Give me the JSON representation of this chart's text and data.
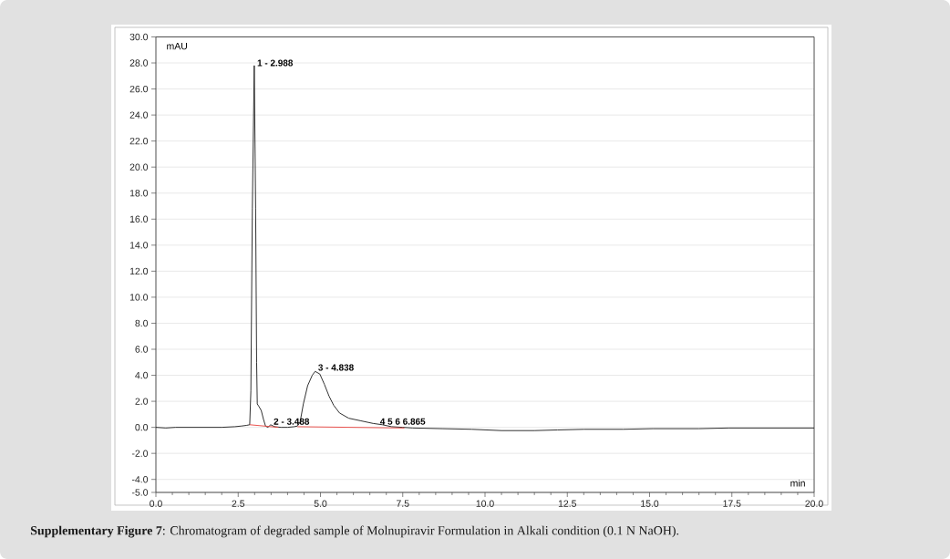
{
  "chart_data": {
    "type": "line",
    "xlabel": "min",
    "ylabel": "mAU",
    "xlim": [
      0,
      20
    ],
    "ylim": [
      -5,
      30
    ],
    "xticks": [
      {
        "value": 0,
        "label": "0.0"
      },
      2.5,
      {
        "value": 5,
        "label": "5.0"
      },
      7.5,
      {
        "value": 10,
        "label": "10.0"
      },
      12.5,
      {
        "value": 15,
        "label": "15.0"
      },
      17.5,
      {
        "value": 20,
        "label": "20.0"
      }
    ],
    "yticks": [
      {
        "value": 30,
        "label": "30.0"
      },
      {
        "value": 28,
        "label": "28.0"
      },
      {
        "value": 26,
        "label": "26.0"
      },
      {
        "value": 24,
        "label": "24.0"
      },
      {
        "value": 22,
        "label": "22.0"
      },
      {
        "value": 20,
        "label": "20.0"
      },
      {
        "value": 18,
        "label": "18.0"
      },
      {
        "value": 16,
        "label": "16.0"
      },
      {
        "value": 14,
        "label": "14.0"
      },
      {
        "value": 12,
        "label": "12.0"
      },
      {
        "value": 10,
        "label": "10.0"
      },
      {
        "value": 8,
        "label": "8.0"
      },
      {
        "value": 6,
        "label": "6.0"
      },
      {
        "value": 4,
        "label": "4.0"
      },
      {
        "value": 2,
        "label": "2.0"
      },
      {
        "value": 0,
        "label": "0.0"
      },
      {
        "value": -2,
        "label": "-2.0"
      },
      {
        "value": -4,
        "label": "-4.0"
      },
      {
        "value": -5,
        "label": "-5.0"
      }
    ],
    "grid": "y",
    "marker": "none",
    "line_style": "solid",
    "series": [
      {
        "color": "#1a1a1a",
        "x": [
          0,
          0.3,
          0.6,
          1.0,
          1.5,
          2.0,
          2.4,
          2.6,
          2.75,
          2.85,
          2.885,
          2.93,
          2.988,
          3.03,
          3.06,
          3.08,
          3.13,
          3.2,
          3.27,
          3.33,
          3.4,
          3.488,
          3.6,
          3.8,
          4.0,
          4.2,
          4.3,
          4.38,
          4.48,
          4.61,
          4.75,
          4.838,
          4.98,
          5.12,
          5.26,
          5.4,
          5.58,
          5.86,
          6.23,
          6.6,
          6.88,
          7.16,
          7.5,
          7.8,
          8.7,
          9.6,
          10.5,
          11.5,
          12.2,
          13.0,
          14.2,
          15.1,
          16.5,
          17.4,
          18.4,
          19.3,
          20.0
        ],
        "values": [
          0.0,
          -0.05,
          0.0,
          0.0,
          0.0,
          0.0,
          0.05,
          0.1,
          0.15,
          0.2,
          2.8,
          16.8,
          27.8,
          16.8,
          5.0,
          1.8,
          1.6,
          1.3,
          0.6,
          0.1,
          0.0,
          0.2,
          0.05,
          0.0,
          0.0,
          0.05,
          0.1,
          0.4,
          1.8,
          3.2,
          4.0,
          4.3,
          4.1,
          3.3,
          2.4,
          1.7,
          1.1,
          0.7,
          0.5,
          0.3,
          0.2,
          0.05,
          0.0,
          -0.05,
          -0.1,
          -0.15,
          -0.25,
          -0.25,
          -0.2,
          -0.15,
          -0.15,
          -0.1,
          -0.1,
          -0.05,
          -0.05,
          -0.05,
          -0.05
        ]
      },
      {
        "color": "#e8413c",
        "x": [
          2.85,
          3.72,
          4.0,
          4.3,
          7.55
        ],
        "values": [
          0.2,
          0.0,
          null,
          0.05,
          -0.05
        ]
      }
    ],
    "annotations": [
      {
        "text": "1 - 2.988",
        "x": 2.988,
        "y": 28.0
      },
      {
        "text": "2 - 3.488",
        "x": 3.488,
        "y": 0.45
      },
      {
        "text": "3 - 4.838",
        "x": 4.838,
        "y": 4.6
      },
      {
        "text": "4 5 6 6.865",
        "x": 6.72,
        "y": 0.45
      },
      "**Supplementary Figure 7**: Chromatogram of degraded sample of Molnupiravir Formulation in Alkali condition (0.1 N NaOH)."
    ]
  }
}
